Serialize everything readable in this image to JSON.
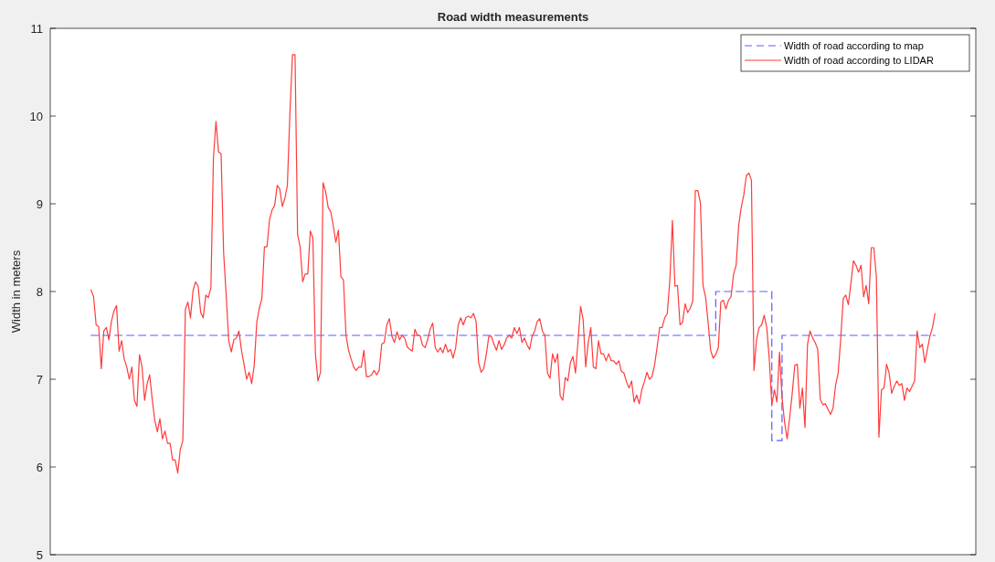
{
  "chart_data": {
    "type": "line",
    "title": "Road width measurements",
    "ylabel": "Width in meters",
    "ylim": [
      5,
      11
    ],
    "yticks": [
      5,
      6,
      7,
      8,
      9,
      10,
      11
    ],
    "tick_labels": "y",
    "legend": "top right",
    "categories": [
      null,
      null,
      null,
      null,
      null,
      null,
      null,
      null,
      null,
      null,
      null,
      null,
      null,
      null,
      null,
      null,
      null,
      null,
      null,
      null,
      null,
      null,
      null,
      null,
      null,
      null,
      null,
      null,
      null,
      null,
      null,
      null,
      null,
      null,
      null,
      null,
      null,
      null,
      null,
      null,
      null,
      null,
      null,
      null,
      null,
      null,
      null,
      null,
      null,
      null,
      null,
      null,
      null,
      null,
      null,
      null,
      null,
      null,
      null,
      null,
      null,
      null,
      null,
      null,
      null,
      null,
      null,
      null,
      null,
      null,
      null,
      null,
      null,
      null,
      null,
      null,
      null,
      null,
      null,
      null,
      null,
      null,
      null,
      null,
      null,
      null,
      null,
      null,
      null,
      null,
      null,
      null,
      null,
      null,
      null,
      null,
      null,
      null,
      null,
      null,
      null,
      null,
      null,
      null,
      null,
      null,
      null,
      null,
      null,
      null,
      null,
      null,
      null,
      null,
      null,
      null,
      null,
      null,
      null,
      null,
      null,
      null,
      null,
      null,
      null,
      null,
      null,
      null,
      null,
      null,
      null,
      null,
      null,
      null,
      null,
      null,
      null,
      null,
      null,
      null,
      null,
      null,
      null,
      null,
      null,
      null,
      null,
      null,
      null,
      null,
      null,
      null,
      null,
      null,
      null,
      null,
      null,
      null,
      null,
      null,
      null,
      null,
      null,
      null,
      null,
      null,
      null,
      null,
      null,
      null,
      null,
      null,
      null,
      null,
      null,
      null,
      null,
      null,
      null,
      null,
      null,
      null,
      null,
      null,
      null,
      null,
      null,
      null,
      null,
      null,
      null,
      null,
      null,
      null,
      null,
      null,
      null,
      null,
      null,
      null,
      null,
      null,
      null,
      null,
      null,
      null,
      null,
      null,
      null,
      null,
      null,
      null,
      null,
      null,
      null,
      null,
      null,
      null,
      null,
      null,
      null,
      null,
      null,
      null,
      null,
      null,
      null,
      null,
      null,
      null,
      null,
      null,
      null,
      null,
      null,
      null,
      null,
      null,
      null,
      null,
      null,
      null,
      null,
      null,
      null,
      null,
      null,
      null,
      null,
      null,
      null,
      null,
      null,
      null,
      null,
      null,
      null,
      null,
      null,
      null,
      null,
      null,
      null,
      null,
      null,
      null,
      null,
      null,
      null,
      null,
      null,
      null,
      null,
      null,
      null,
      null,
      null,
      null,
      null,
      null,
      null,
      null,
      null,
      null,
      null,
      null,
      null,
      null,
      null,
      null,
      null,
      null,
      null,
      null,
      null,
      null,
      null,
      null,
      null,
      null,
      null,
      null,
      null,
      null,
      null,
      null,
      null,
      null,
      null,
      null,
      null,
      null,
      null,
      null,
      null,
      null,
      null,
      null,
      null,
      null,
      null,
      null,
      null,
      null,
      null,
      null,
      null,
      null,
      null,
      null,
      null,
      null
    ],
    "series": [
      {
        "name": "Width of road according to map",
        "type": "step",
        "color": "#5c5cff",
        "line_style": "dashed",
        "values": [
          7.5,
          7.5,
          7.5,
          7.5,
          7.5,
          7.5,
          7.5,
          7.5,
          7.5,
          7.5,
          7.5,
          7.5,
          7.5,
          7.5,
          7.5,
          7.5,
          7.5,
          7.5,
          7.5,
          7.5,
          7.5,
          7.5,
          7.5,
          7.5,
          7.5,
          7.5,
          7.5,
          7.5,
          7.5,
          7.5,
          7.5,
          7.5,
          7.5,
          7.5,
          7.5,
          7.5,
          7.5,
          7.5,
          7.5,
          7.5,
          7.5,
          7.5,
          7.5,
          7.5,
          7.5,
          7.5,
          7.5,
          7.5,
          7.5,
          7.5,
          7.5,
          7.5,
          7.5,
          7.5,
          7.5,
          7.5,
          7.5,
          7.5,
          7.5,
          7.5,
          7.5,
          7.5,
          7.5,
          7.5,
          7.5,
          7.5,
          7.5,
          7.5,
          7.5,
          7.5,
          7.5,
          7.5,
          7.5,
          7.5,
          7.5,
          7.5,
          7.5,
          7.5,
          7.5,
          7.5,
          7.5,
          7.5,
          7.5,
          7.5,
          7.5,
          7.5,
          7.5,
          7.5,
          7.5,
          7.5,
          7.5,
          7.5,
          7.5,
          7.5,
          7.5,
          7.5,
          7.5,
          7.5,
          7.5,
          7.5,
          7.5,
          7.5,
          7.5,
          7.5,
          7.5,
          7.5,
          7.5,
          7.5,
          7.5,
          7.5,
          7.5,
          7.5,
          7.5,
          7.5,
          7.5,
          7.5,
          7.5,
          7.5,
          7.5,
          7.5,
          7.5,
          7.5,
          7.5,
          7.5,
          7.5,
          7.5,
          7.5,
          7.5,
          7.5,
          7.5,
          7.5,
          7.5,
          7.5,
          7.5,
          7.5,
          7.5,
          7.5,
          7.5,
          7.5,
          7.5,
          7.5,
          7.5,
          7.5,
          7.5,
          7.5,
          7.5,
          7.5,
          7.5,
          7.5,
          7.5,
          7.5,
          7.5,
          7.5,
          7.5,
          7.5,
          7.5,
          7.5,
          7.5,
          7.5,
          7.5,
          7.5,
          7.5,
          7.5,
          7.5,
          7.5,
          7.5,
          7.5,
          7.5,
          7.5,
          7.5,
          7.5,
          7.5,
          7.5,
          7.5,
          7.5,
          7.5,
          7.5,
          7.5,
          7.5,
          7.5,
          7.5,
          7.5,
          7.5,
          7.5,
          7.5,
          7.5,
          7.5,
          7.5,
          7.5,
          7.5,
          7.5,
          7.5,
          7.5,
          7.5,
          7.5,
          7.5,
          7.5,
          7.5,
          7.5,
          7.5,
          7.5,
          7.5,
          7.5,
          7.5,
          7.5,
          7.5,
          7.5,
          7.5,
          7.5,
          7.5,
          7.5,
          7.5,
          7.5,
          7.5,
          7.5,
          7.5,
          7.5,
          7.5,
          7.5,
          7.5,
          7.5,
          7.5,
          7.5,
          7.5,
          7.5,
          7.5,
          7.5,
          7.5,
          7.5,
          7.5,
          7.5,
          7.5,
          7.5,
          7.5,
          7.5,
          7.5,
          7.5,
          7.5,
          7.5,
          7.5,
          7.5,
          7.5,
          7.5,
          7.5,
          7.5,
          8,
          8,
          8,
          8,
          8,
          8,
          8,
          8,
          8,
          8,
          8,
          8,
          8,
          8,
          8,
          8,
          8,
          8,
          8,
          8,
          8,
          8,
          6.3,
          6.3,
          6.3,
          6.3,
          7.5,
          7.5,
          7.5,
          7.5,
          7.5,
          7.5,
          7.5,
          7.5,
          7.5,
          7.5,
          7.5,
          7.5,
          7.5,
          7.5,
          7.5,
          7.5,
          7.5,
          7.5,
          7.5,
          7.5,
          7.5,
          7.5,
          7.5,
          7.5,
          7.5,
          7.5,
          7.5,
          7.5,
          7.5,
          7.5,
          7.5,
          7.5,
          7.5,
          7.5,
          7.5,
          7.5,
          7.5,
          7.5,
          7.5,
          7.5,
          7.5,
          7.5,
          7.5,
          7.5,
          7.5,
          7.5,
          7.5,
          7.5,
          7.5,
          7.5,
          7.5,
          7.5,
          7.5,
          7.5,
          7.5,
          7.5,
          7.5,
          7.5,
          7.5,
          7.5,
          7.5
        ]
      },
      {
        "name": "Width of road according to LIDAR",
        "color": "#ff3b3b",
        "line_style": "solid",
        "values": [
          8.02,
          7.94,
          7.62,
          7.6,
          7.12,
          7.55,
          7.59,
          7.45,
          7.66,
          7.78,
          7.84,
          7.32,
          7.44,
          7.23,
          7.14,
          7.0,
          7.14,
          6.76,
          6.69,
          7.28,
          7.14,
          6.76,
          6.95,
          7.05,
          6.77,
          6.53,
          6.4,
          6.55,
          6.32,
          6.41,
          6.27,
          6.27,
          6.08,
          6.08,
          5.93,
          6.2,
          6.3,
          7.8,
          7.88,
          7.7,
          8.01,
          8.11,
          8.06,
          7.76,
          7.7,
          7.96,
          7.93,
          8.04,
          9.52,
          9.94,
          9.59,
          9.57,
          8.44,
          7.96,
          7.44,
          7.31,
          7.45,
          7.47,
          7.55,
          7.33,
          7.17,
          7.0,
          7.08,
          6.95,
          7.16,
          7.65,
          7.81,
          7.92,
          8.51,
          8.51,
          8.82,
          8.93,
          8.98,
          9.21,
          9.17,
          8.97,
          9.06,
          9.21,
          10.04,
          10.7,
          10.7,
          8.65,
          8.51,
          8.11,
          8.2,
          8.2,
          8.69,
          8.61,
          7.29,
          6.98,
          7.08,
          9.24,
          9.14,
          8.96,
          8.91,
          8.75,
          8.56,
          8.7,
          8.17,
          8.13,
          7.5,
          7.33,
          7.23,
          7.14,
          7.1,
          7.14,
          7.14,
          7.33,
          7.03,
          7.03,
          7.05,
          7.1,
          7.05,
          7.1,
          7.4,
          7.42,
          7.62,
          7.69,
          7.49,
          7.42,
          7.54,
          7.45,
          7.5,
          7.47,
          7.37,
          7.34,
          7.32,
          7.57,
          7.5,
          7.5,
          7.39,
          7.36,
          7.45,
          7.57,
          7.64,
          7.36,
          7.31,
          7.36,
          7.3,
          7.4,
          7.31,
          7.34,
          7.24,
          7.36,
          7.62,
          7.7,
          7.62,
          7.7,
          7.72,
          7.7,
          7.75,
          7.66,
          7.19,
          7.08,
          7.12,
          7.28,
          7.49,
          7.49,
          7.4,
          7.33,
          7.44,
          7.34,
          7.39,
          7.47,
          7.5,
          7.47,
          7.59,
          7.52,
          7.59,
          7.42,
          7.47,
          7.39,
          7.34,
          7.49,
          7.55,
          7.66,
          7.69,
          7.55,
          7.5,
          7.07,
          7.01,
          7.29,
          7.19,
          7.29,
          6.81,
          6.76,
          7.02,
          6.98,
          7.19,
          7.26,
          7.07,
          7.44,
          7.83,
          7.68,
          7.14,
          7.42,
          7.59,
          7.14,
          7.12,
          7.44,
          7.29,
          7.29,
          7.21,
          7.29,
          7.21,
          7.21,
          7.17,
          7.21,
          7.09,
          7.07,
          6.97,
          6.9,
          6.98,
          6.74,
          6.82,
          6.72,
          6.88,
          6.97,
          7.08,
          7.0,
          7.03,
          7.16,
          7.36,
          7.59,
          7.59,
          7.7,
          7.75,
          8.13,
          8.81,
          8.06,
          8.07,
          7.62,
          7.65,
          7.86,
          7.76,
          7.81,
          7.89,
          9.15,
          9.15,
          9.01,
          8.07,
          7.94,
          7.65,
          7.33,
          7.24,
          7.28,
          7.36,
          7.88,
          7.9,
          7.8,
          7.9,
          7.94,
          8.2,
          8.3,
          8.75,
          8.96,
          9.1,
          9.32,
          9.35,
          9.27,
          7.1,
          7.45,
          7.59,
          7.62,
          7.73,
          7.59,
          7.23,
          6.71,
          6.88,
          6.74,
          7.31,
          6.79,
          6.51,
          6.32,
          6.56,
          6.84,
          7.16,
          7.17,
          6.67,
          6.9,
          6.45,
          7.4,
          7.55,
          7.47,
          7.42,
          7.34,
          6.77,
          6.71,
          6.72,
          6.66,
          6.6,
          6.67,
          6.93,
          7.07,
          7.45,
          7.92,
          7.96,
          7.85,
          8.09,
          8.35,
          8.3,
          8.22,
          8.3,
          7.94,
          8.07,
          7.86,
          8.5,
          8.5,
          8.17,
          6.34,
          6.88,
          6.9,
          7.17,
          7.07,
          6.84,
          6.92,
          6.98,
          6.93,
          6.95,
          6.76,
          6.9,
          6.86,
          6.92,
          6.98,
          7.55,
          7.36,
          7.4,
          7.19,
          7.34,
          7.49,
          7.59,
          7.75
        ]
      }
    ]
  }
}
